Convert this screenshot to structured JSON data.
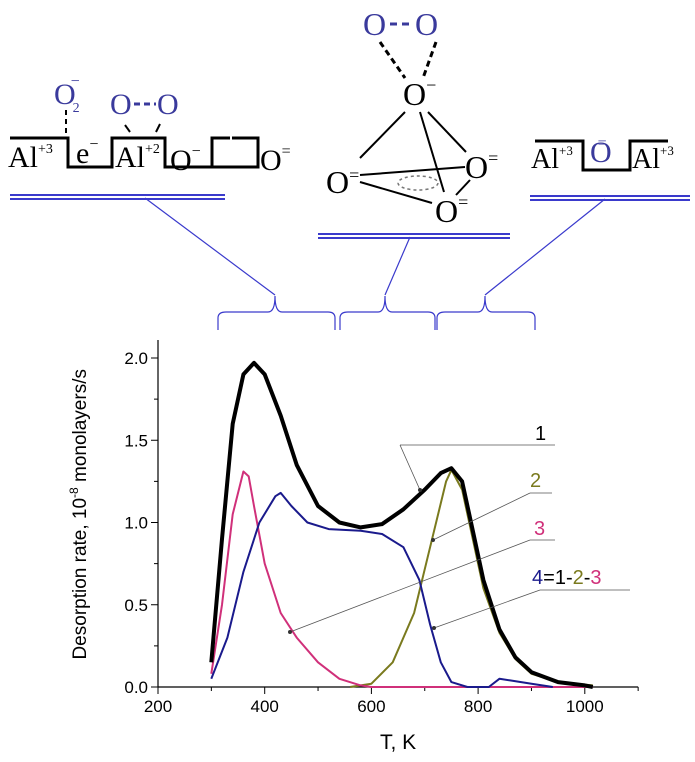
{
  "diagram": {
    "left": {
      "al3": "Al",
      "al3_sup": "+3",
      "e": "e",
      "e_sup": "−",
      "al2": "Al",
      "al2_sup": "+2",
      "o_minus": "O",
      "o_minus_sup": "−",
      "o2": "O",
      "o2_sub": "2",
      "o2_sup": "−",
      "o_pair_a": "O",
      "o_pair_b": "O",
      "o_eq": "O",
      "o_eq_sup": "="
    },
    "center": {
      "top_a": "O",
      "top_b": "O",
      "o_minus": "O",
      "o_minus_sup": "−",
      "o1": "O",
      "o1_sup": "=",
      "o2": "O",
      "o2_sup": "=",
      "o3": "O",
      "o3_sup": "="
    },
    "right": {
      "al_a": "Al",
      "al_a_sup": "+3",
      "o": "O",
      "o_sup": "=",
      "al_b": "Al",
      "al_b_sup": "+3"
    }
  },
  "chart_data": {
    "type": "line",
    "xlabel": "T, K",
    "ylabel": "Desorption rate, 10",
    "ylabel_sup": "-8",
    "ylabel_tail": " monolayers/s",
    "xlim": [
      200,
      1100
    ],
    "ylim": [
      0,
      2.1
    ],
    "xticks": [
      200,
      400,
      600,
      800,
      1000
    ],
    "yticks": [
      0.0,
      0.5,
      1.0,
      1.5,
      2.0
    ],
    "xtick_labels": [
      "200",
      "400",
      "600",
      "800",
      "1000"
    ],
    "ytick_labels": [
      "0.0",
      "0.5",
      "1.0",
      "1.5",
      "2.0"
    ],
    "series": [
      {
        "name": "1",
        "color": "#000000",
        "width": 4,
        "x": [
          300,
          320,
          340,
          360,
          380,
          400,
          430,
          460,
          500,
          540,
          580,
          620,
          660,
          700,
          730,
          750,
          770,
          790,
          810,
          840,
          870,
          900,
          950,
          1000,
          1015
        ],
        "y": [
          0.15,
          0.9,
          1.6,
          1.9,
          1.97,
          1.9,
          1.65,
          1.35,
          1.1,
          1.0,
          0.97,
          0.99,
          1.08,
          1.2,
          1.3,
          1.33,
          1.25,
          0.95,
          0.65,
          0.35,
          0.18,
          0.09,
          0.03,
          0.01,
          0.0
        ]
      },
      {
        "name": "2",
        "color": "#7a7a1e",
        "width": 2,
        "x": [
          560,
          600,
          640,
          680,
          710,
          740,
          750,
          770,
          790,
          810,
          840,
          870,
          900,
          950,
          1015
        ],
        "y": [
          0.0,
          0.02,
          0.15,
          0.45,
          0.85,
          1.25,
          1.32,
          1.2,
          0.9,
          0.6,
          0.33,
          0.17,
          0.08,
          0.03,
          0.01
        ]
      },
      {
        "name": "3",
        "color": "#d0307a",
        "width": 2,
        "x": [
          300,
          320,
          340,
          360,
          370,
          380,
          400,
          430,
          460,
          500,
          540,
          580,
          600,
          1015
        ],
        "y": [
          0.08,
          0.5,
          1.05,
          1.31,
          1.28,
          1.1,
          0.75,
          0.45,
          0.3,
          0.15,
          0.05,
          0.01,
          0.0,
          0.0
        ]
      },
      {
        "name": "4=1-2-3",
        "color": "#1a1a8c",
        "width": 2,
        "x": [
          300,
          330,
          360,
          390,
          420,
          430,
          450,
          480,
          520,
          580,
          620,
          660,
          690,
          710,
          730,
          750,
          780,
          820,
          840,
          860,
          900,
          940
        ],
        "y": [
          0.05,
          0.3,
          0.7,
          1.0,
          1.16,
          1.18,
          1.1,
          1.0,
          0.96,
          0.95,
          0.93,
          0.85,
          0.65,
          0.38,
          0.15,
          0.03,
          0.0,
          0.0,
          0.05,
          0.04,
          0.02,
          0.0
        ]
      }
    ],
    "legend_labels": {
      "l1": "1",
      "l2": "2",
      "l3": "3",
      "l4_a": "4",
      "l4_b": "=",
      "l4_c": "1",
      "l4_d": "-",
      "l4_e": "2",
      "l4_f": "-",
      "l4_g": "3"
    }
  }
}
